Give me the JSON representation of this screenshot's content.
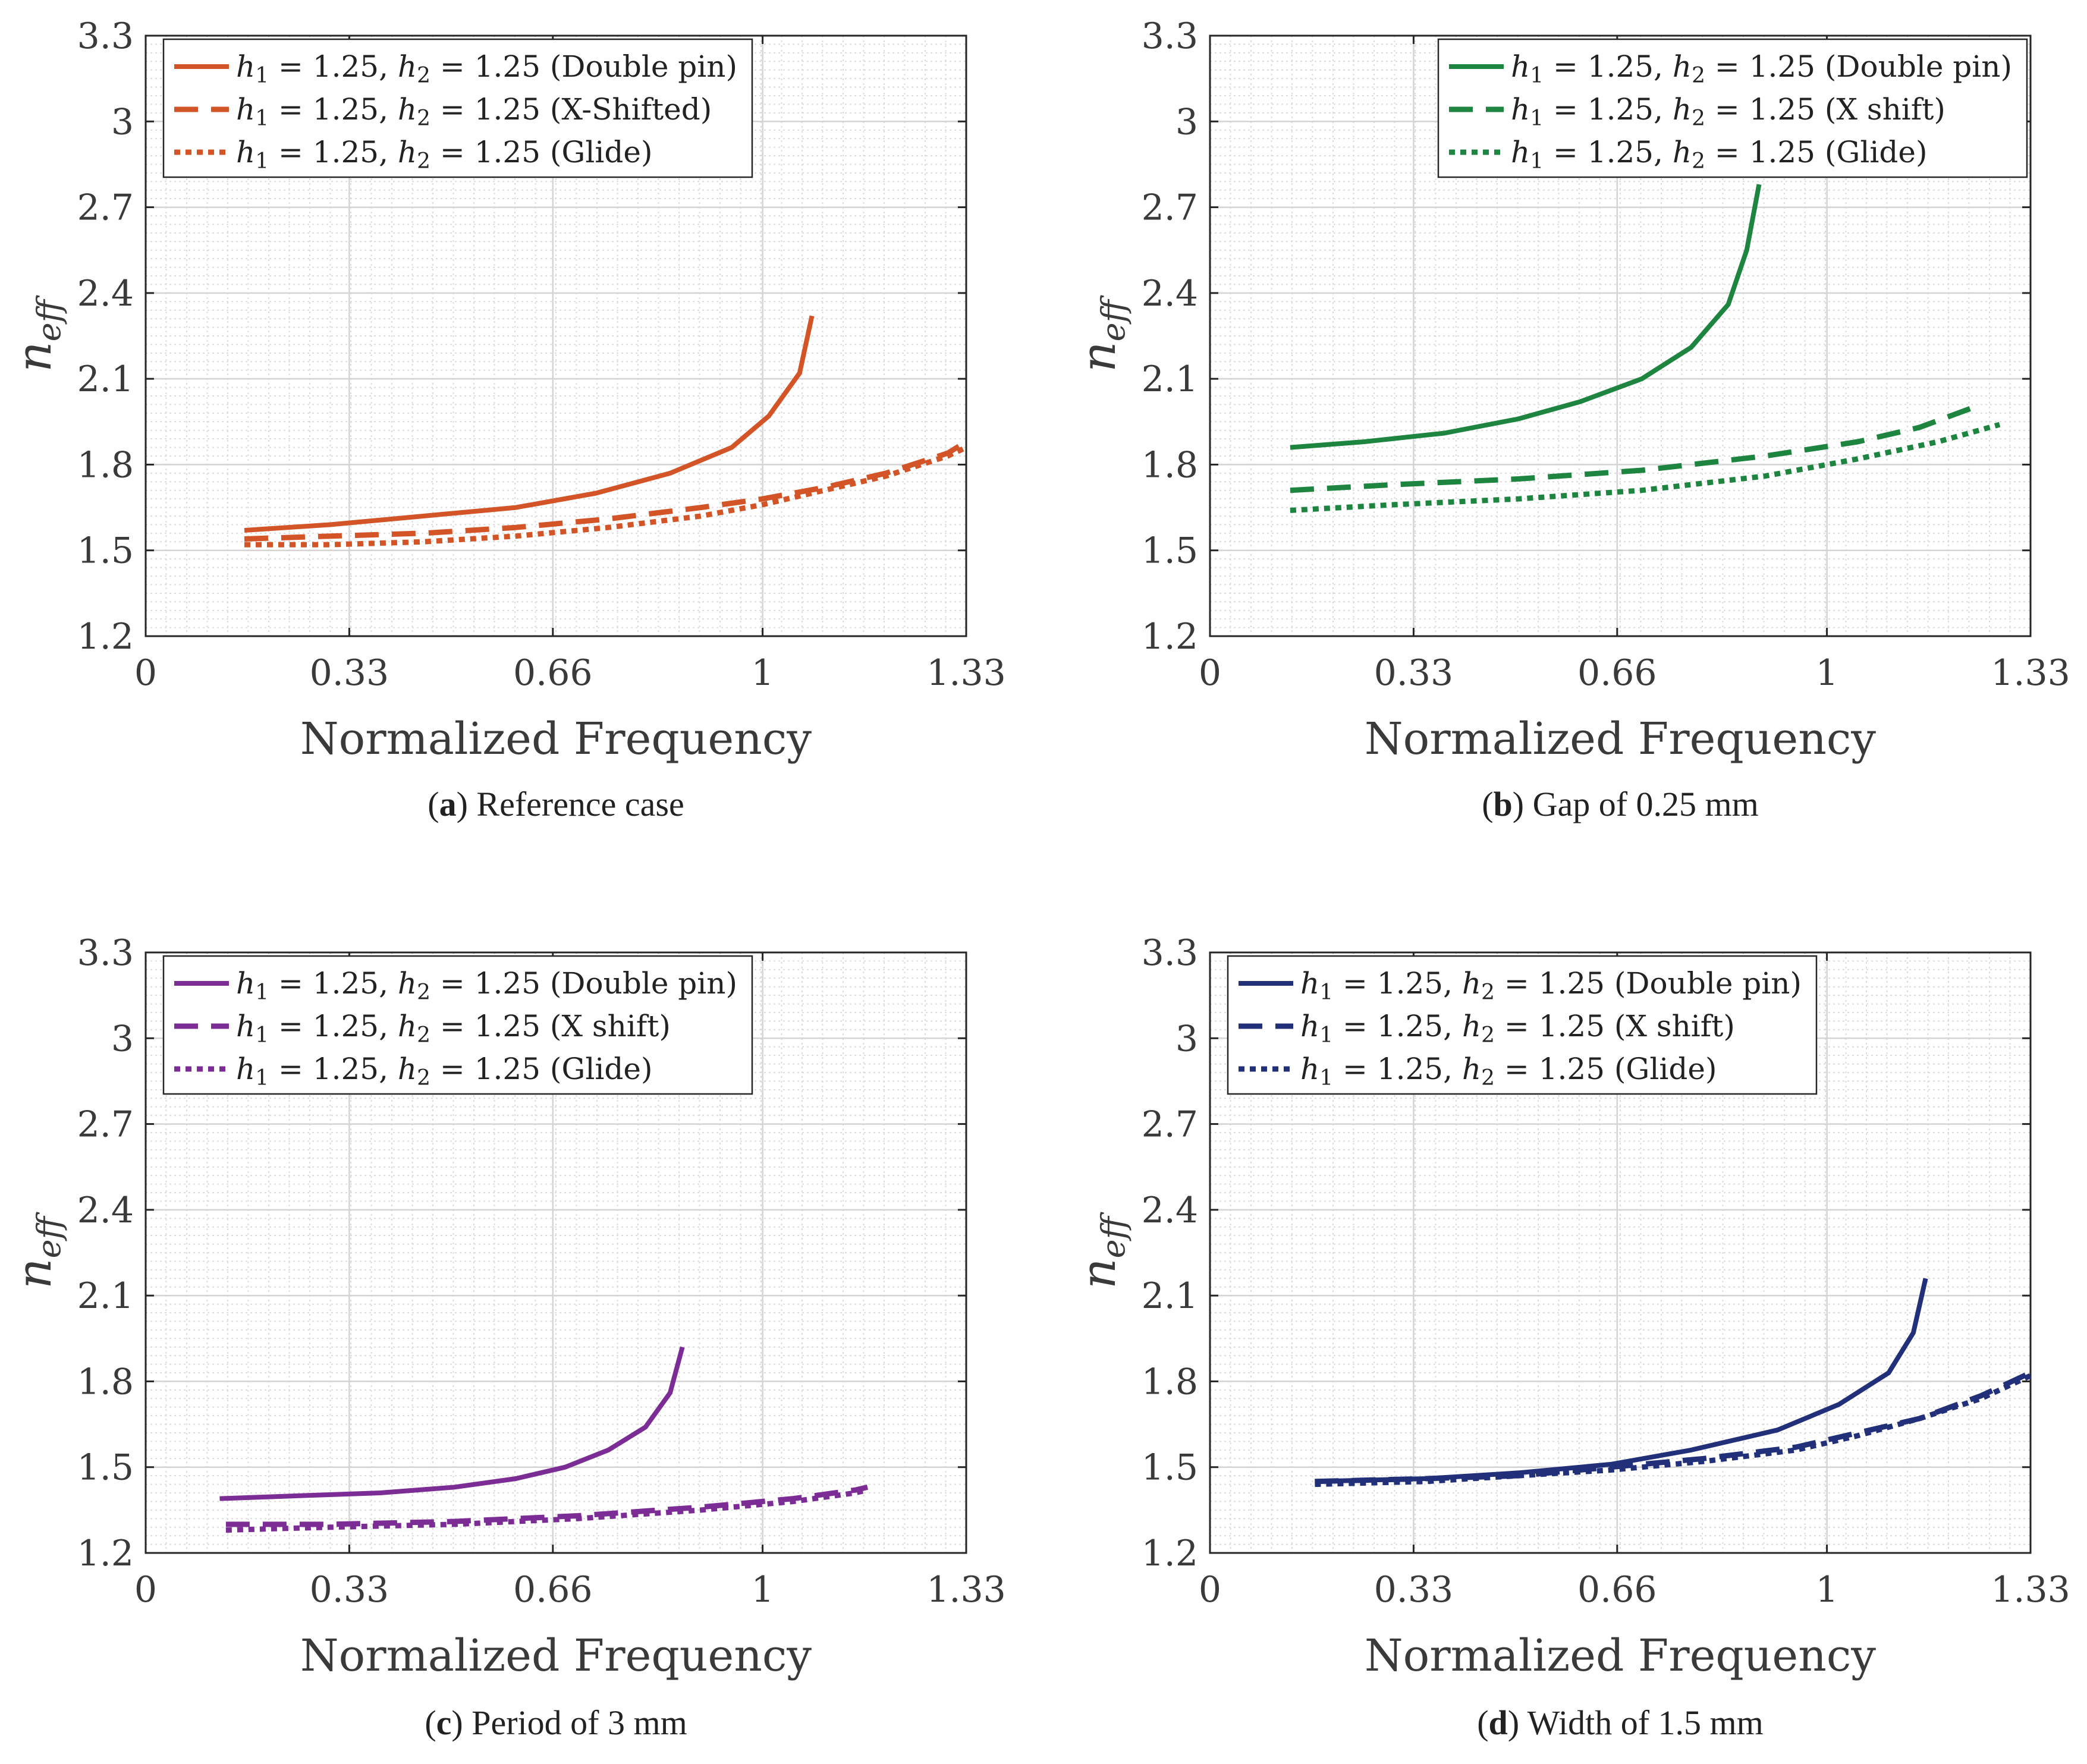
{
  "chart_data": [
    {
      "type": "line",
      "caption_letter": "a",
      "caption_text": "Reference case",
      "color": "#d35426",
      "xlabel": "Normalized Frequency",
      "ylabel": "n_eff",
      "ylabel_main": "n",
      "ylabel_sub": "eff",
      "xlim": [
        0,
        1.33
      ],
      "ylim": [
        1.2,
        3.3
      ],
      "xticks": [
        "0",
        "0.33",
        "0.66",
        "1",
        "1.33"
      ],
      "yticks": [
        "1.2",
        "1.5",
        "1.8",
        "2.1",
        "2.4",
        "2.7",
        "3",
        "3.3"
      ],
      "grid": true,
      "legend_position": "top-left",
      "series": [
        {
          "name": "h1 = 1.25, h2 = 1.25 (Double pin)",
          "label_suffix": "(Double pin)",
          "dash": "solid",
          "x": [
            0.16,
            0.3,
            0.45,
            0.6,
            0.73,
            0.85,
            0.95,
            1.01,
            1.06,
            1.08
          ],
          "y": [
            1.57,
            1.59,
            1.62,
            1.65,
            1.7,
            1.77,
            1.86,
            1.97,
            2.12,
            2.32
          ]
        },
        {
          "name": "h1 = 1.25, h2 = 1.25 (X-Shifted)",
          "label_suffix": "(X-Shifted)",
          "dash": "dashed",
          "x": [
            0.16,
            0.3,
            0.45,
            0.6,
            0.75,
            0.9,
            1.0,
            1.1,
            1.2,
            1.3,
            1.33
          ],
          "y": [
            1.54,
            1.55,
            1.56,
            1.58,
            1.61,
            1.65,
            1.68,
            1.72,
            1.77,
            1.84,
            1.88
          ]
        },
        {
          "name": "h1 = 1.25, h2 = 1.25 (Glide)",
          "label_suffix": "(Glide)",
          "dash": "dotted",
          "x": [
            0.16,
            0.3,
            0.45,
            0.6,
            0.75,
            0.9,
            1.0,
            1.1,
            1.2,
            1.3,
            1.33
          ],
          "y": [
            1.52,
            1.52,
            1.53,
            1.55,
            1.58,
            1.62,
            1.66,
            1.71,
            1.76,
            1.83,
            1.86
          ]
        }
      ]
    },
    {
      "type": "line",
      "caption_letter": "b",
      "caption_text": "Gap of 0.25 mm",
      "color": "#1e8540",
      "xlabel": "Normalized Frequency",
      "ylabel": "n_eff",
      "ylabel_main": "n",
      "ylabel_sub": "eff",
      "xlim": [
        0,
        1.33
      ],
      "ylim": [
        1.2,
        3.3
      ],
      "xticks": [
        "0",
        "0.33",
        "0.66",
        "1",
        "1.33"
      ],
      "yticks": [
        "1.2",
        "1.5",
        "1.8",
        "2.1",
        "2.4",
        "2.7",
        "3",
        "3.3"
      ],
      "grid": true,
      "legend_position": "top-right",
      "series": [
        {
          "name": "h1 = 1.25, h2 = 1.25 (Double pin)",
          "label_suffix": "(Double pin)",
          "dash": "solid",
          "x": [
            0.13,
            0.25,
            0.38,
            0.5,
            0.6,
            0.7,
            0.78,
            0.84,
            0.87,
            0.89
          ],
          "y": [
            1.86,
            1.88,
            1.91,
            1.96,
            2.02,
            2.1,
            2.21,
            2.36,
            2.55,
            2.78
          ]
        },
        {
          "name": "h1 = 1.25, h2 = 1.25 (X shift)",
          "label_suffix": "(X shift)",
          "dash": "dashed",
          "x": [
            0.13,
            0.3,
            0.5,
            0.7,
            0.9,
            1.05,
            1.15,
            1.25
          ],
          "y": [
            1.71,
            1.73,
            1.75,
            1.78,
            1.83,
            1.88,
            1.93,
            2.01
          ]
        },
        {
          "name": "h1 = 1.25, h2 = 1.25 (Glide)",
          "label_suffix": "(Glide)",
          "dash": "dotted",
          "x": [
            0.13,
            0.3,
            0.5,
            0.7,
            0.9,
            1.05,
            1.18,
            1.28
          ],
          "y": [
            1.64,
            1.66,
            1.68,
            1.71,
            1.76,
            1.82,
            1.88,
            1.94
          ]
        }
      ]
    },
    {
      "type": "line",
      "caption_letter": "c",
      "caption_text": "Period of 3 mm",
      "color": "#7b2d95",
      "xlabel": "Normalized Frequency",
      "ylabel": "n_eff",
      "ylabel_main": "n",
      "ylabel_sub": "eff",
      "xlim": [
        0,
        1.33
      ],
      "ylim": [
        1.2,
        3.3
      ],
      "xticks": [
        "0",
        "0.33",
        "0.66",
        "1",
        "1.33"
      ],
      "yticks": [
        "1.2",
        "1.5",
        "1.8",
        "2.1",
        "2.4",
        "2.7",
        "3",
        "3.3"
      ],
      "grid": true,
      "legend_position": "top-left",
      "series": [
        {
          "name": "h1 = 1.25, h2 = 1.25 (Double pin)",
          "label_suffix": "(Double pin)",
          "dash": "solid",
          "x": [
            0.12,
            0.25,
            0.38,
            0.5,
            0.6,
            0.68,
            0.75,
            0.81,
            0.85,
            0.87
          ],
          "y": [
            1.39,
            1.4,
            1.41,
            1.43,
            1.46,
            1.5,
            1.56,
            1.64,
            1.76,
            1.92
          ]
        },
        {
          "name": "h1 = 1.25, h2 = 1.25 (X shift)",
          "label_suffix": "(X shift)",
          "dash": "dashed",
          "x": [
            0.13,
            0.3,
            0.5,
            0.7,
            0.9,
            1.05,
            1.15,
            1.17
          ],
          "y": [
            1.3,
            1.3,
            1.31,
            1.33,
            1.36,
            1.39,
            1.42,
            1.43
          ]
        },
        {
          "name": "h1 = 1.25, h2 = 1.25 (Glide)",
          "label_suffix": "(Glide)",
          "dash": "dotted",
          "x": [
            0.13,
            0.3,
            0.5,
            0.7,
            0.9,
            1.05,
            1.15,
            1.17
          ],
          "y": [
            1.28,
            1.29,
            1.3,
            1.32,
            1.35,
            1.38,
            1.41,
            1.42
          ]
        }
      ]
    },
    {
      "type": "line",
      "caption_letter": "d",
      "caption_text": "Width of 1.5 mm",
      "color": "#22307a",
      "xlabel": "Normalized Frequency",
      "ylabel": "n_eff",
      "ylabel_main": "n",
      "ylabel_sub": "eff",
      "xlim": [
        0,
        1.33
      ],
      "ylim": [
        1.2,
        3.3
      ],
      "xticks": [
        "0",
        "0.33",
        "0.66",
        "1",
        "1.33"
      ],
      "yticks": [
        "1.2",
        "1.5",
        "1.8",
        "2.1",
        "2.4",
        "2.7",
        "3",
        "3.3"
      ],
      "grid": true,
      "legend_position": "top-left",
      "series": [
        {
          "name": "h1 = 1.25, h2 = 1.25 (Double pin)",
          "label_suffix": "(Double pin)",
          "dash": "solid",
          "x": [
            0.17,
            0.35,
            0.5,
            0.65,
            0.78,
            0.92,
            1.02,
            1.1,
            1.14,
            1.16
          ],
          "y": [
            1.45,
            1.46,
            1.48,
            1.51,
            1.56,
            1.63,
            1.72,
            1.83,
            1.97,
            2.16
          ]
        },
        {
          "name": "h1 = 1.25, h2 = 1.25 (X shift)",
          "label_suffix": "(X shift)",
          "dash": "dashed",
          "x": [
            0.17,
            0.35,
            0.5,
            0.65,
            0.8,
            0.95,
            1.05,
            1.15,
            1.25,
            1.33
          ],
          "y": [
            1.45,
            1.46,
            1.47,
            1.5,
            1.53,
            1.57,
            1.62,
            1.67,
            1.75,
            1.83
          ]
        },
        {
          "name": "h1 = 1.25, h2 = 1.25 (Glide)",
          "label_suffix": "(Glide)",
          "dash": "dotted",
          "x": [
            0.17,
            0.35,
            0.5,
            0.65,
            0.8,
            0.95,
            1.05,
            1.15,
            1.25,
            1.33
          ],
          "y": [
            1.44,
            1.45,
            1.47,
            1.49,
            1.52,
            1.56,
            1.61,
            1.67,
            1.74,
            1.82
          ]
        }
      ]
    }
  ]
}
